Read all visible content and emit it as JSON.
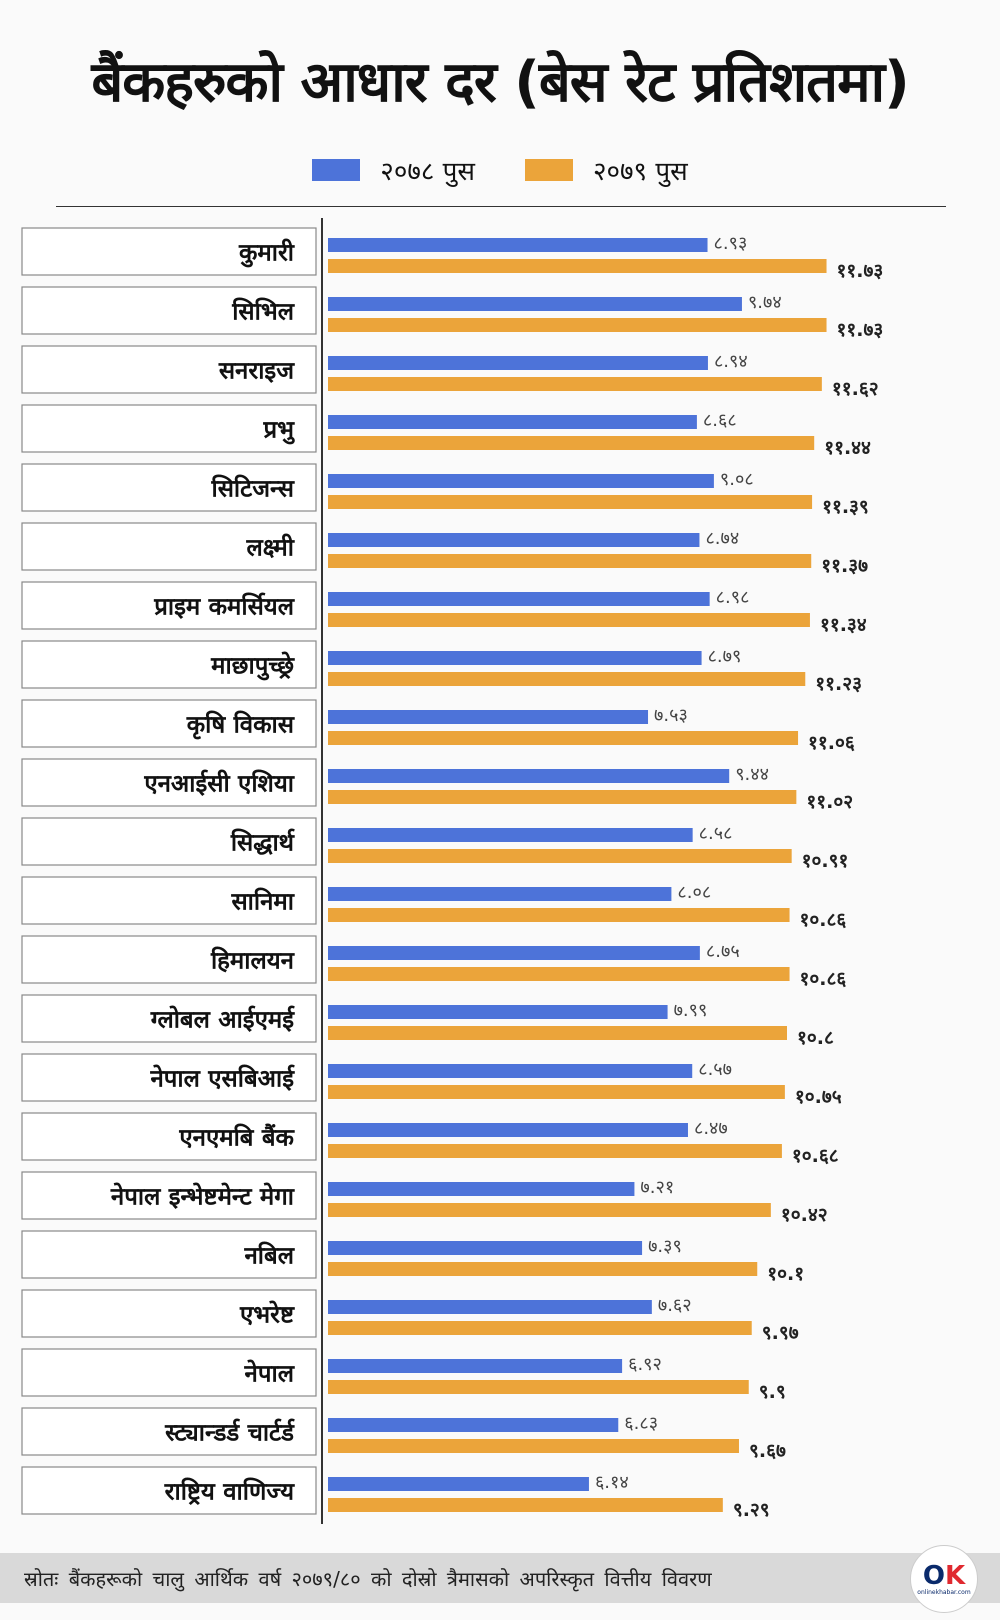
{
  "title": "बैंकहरुको आधार दर (बेस रेट प्रतिशतमा)",
  "colors": {
    "series_2078": "#4d73d9",
    "series_2079": "#eba43a",
    "axis": "#333333"
  },
  "source": "स्रोतः बैंकहरूको चालु आर्थिक वर्ष २०७९/८० को दोस्रो त्रैमासको अपरिस्कृत वित्तीय विवरण",
  "logo": {
    "mark_o": "O",
    "mark_k": "K",
    "text": "onlinekhabar.com"
  },
  "chart_data": {
    "type": "bar",
    "orientation": "horizontal",
    "categories": [
      "कुमारी",
      "सिभिल",
      "सनराइज",
      "प्रभु",
      "सिटिजन्स",
      "लक्ष्मी",
      "प्राइम कमर्सियल",
      "माछापुच्छ्रे",
      "कृषि विकास",
      "एनआईसी एशिया",
      "सिद्धार्थ",
      "सानिमा",
      "हिमालयन",
      "ग्लोबल आईएमई",
      "नेपाल एसबिआई",
      "एनएमबि बैंक",
      "नेपाल इन्भेष्टमेन्ट मेगा",
      "नबिल",
      "एभरेष्ट",
      "नेपाल",
      "स्ट्यान्डर्ड चार्टर्ड",
      "राष्ट्रिय वाणिज्य"
    ],
    "series": [
      {
        "name": "२०७८ पुस",
        "values": [
          8.93,
          9.74,
          8.94,
          8.68,
          9.08,
          8.74,
          8.98,
          8.79,
          7.53,
          9.44,
          8.58,
          8.08,
          8.75,
          7.99,
          8.57,
          8.47,
          7.21,
          7.39,
          7.62,
          6.92,
          6.83,
          6.14
        ],
        "labels": [
          "८.९३",
          "९.७४",
          "८.९४",
          "८.६८",
          "९.०८",
          "८.७४",
          "८.९८",
          "८.७९",
          "७.५३",
          "९.४४",
          "८.५८",
          "८.०८",
          "८.७५",
          "७.९९",
          "८.५७",
          "८.४७",
          "७.२१",
          "७.३९",
          "७.६२",
          "६.९२",
          "६.८३",
          "६.१४"
        ]
      },
      {
        "name": "२०७९ पुस",
        "values": [
          11.73,
          11.73,
          11.62,
          11.44,
          11.39,
          11.37,
          11.34,
          11.23,
          11.06,
          11.02,
          10.91,
          10.86,
          10.86,
          10.8,
          10.75,
          10.68,
          10.42,
          10.1,
          9.97,
          9.9,
          9.67,
          9.29
        ],
        "labels": [
          "११.७३",
          "११.७३",
          "११.६२",
          "११.४४",
          "११.३९",
          "११.३७",
          "११.३४",
          "११.२३",
          "११.०६",
          "११.०२",
          "१०.९१",
          "१०.८६",
          "१०.८६",
          "१०.८",
          "१०.७५",
          "१०.६८",
          "१०.४२",
          "१०.१",
          "९.९७",
          "९.९",
          "९.६७",
          "९.२९"
        ]
      }
    ],
    "grid": false,
    "legend_position": "top"
  }
}
